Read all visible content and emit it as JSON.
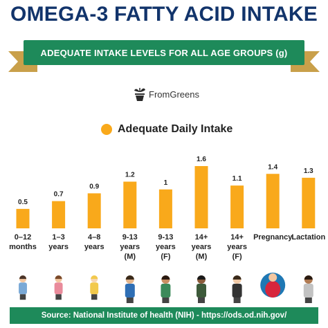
{
  "title": "OMEGA-3 FATTY ACID INTAKE",
  "subtitle": "ADEQUATE INTAKE LEVELS FOR ALL AGE GROUPS (g)",
  "logo": {
    "name": "FromGreens",
    "icon": "bowl-of-greens-icon"
  },
  "colors": {
    "title": "#12346b",
    "ribbon": "#1e8a5a",
    "ribbon_tail": "#c9a04a",
    "bar": "#f9a91b"
  },
  "icons": [
    "parent-with-infant-icon",
    "mother-with-child-icon",
    "toddler-icon",
    "boy-icon",
    "girl-icon",
    "man-icon",
    "woman-icon",
    "pregnant-woman-icon",
    "breastfeeding-woman-icon"
  ],
  "chart_data": {
    "type": "bar",
    "legend": "Adequate Daily Intake",
    "categories": [
      [
        "0–12",
        "months"
      ],
      [
        "1–3",
        "years"
      ],
      [
        "4–8",
        "years"
      ],
      [
        "9-13",
        "years",
        "(M)"
      ],
      [
        "9-13",
        "years",
        "(F)"
      ],
      [
        "14+",
        "years",
        "(M)"
      ],
      [
        "14+",
        "years",
        "(F)"
      ],
      [
        "Pregnancy"
      ],
      [
        "Lactation"
      ]
    ],
    "values": [
      0.5,
      0.7,
      0.9,
      1.2,
      1,
      1.6,
      1.1,
      1.4,
      1.3
    ],
    "labels": [
      "0.5",
      "0.7",
      "0.9",
      "1.2",
      "1",
      "1.6",
      "1.1",
      "1.4",
      "1.3"
    ],
    "ylim": [
      0,
      1.6
    ]
  },
  "footer": "Source: National Institute of health (NIH) - https://ods.od.nih.gov/"
}
